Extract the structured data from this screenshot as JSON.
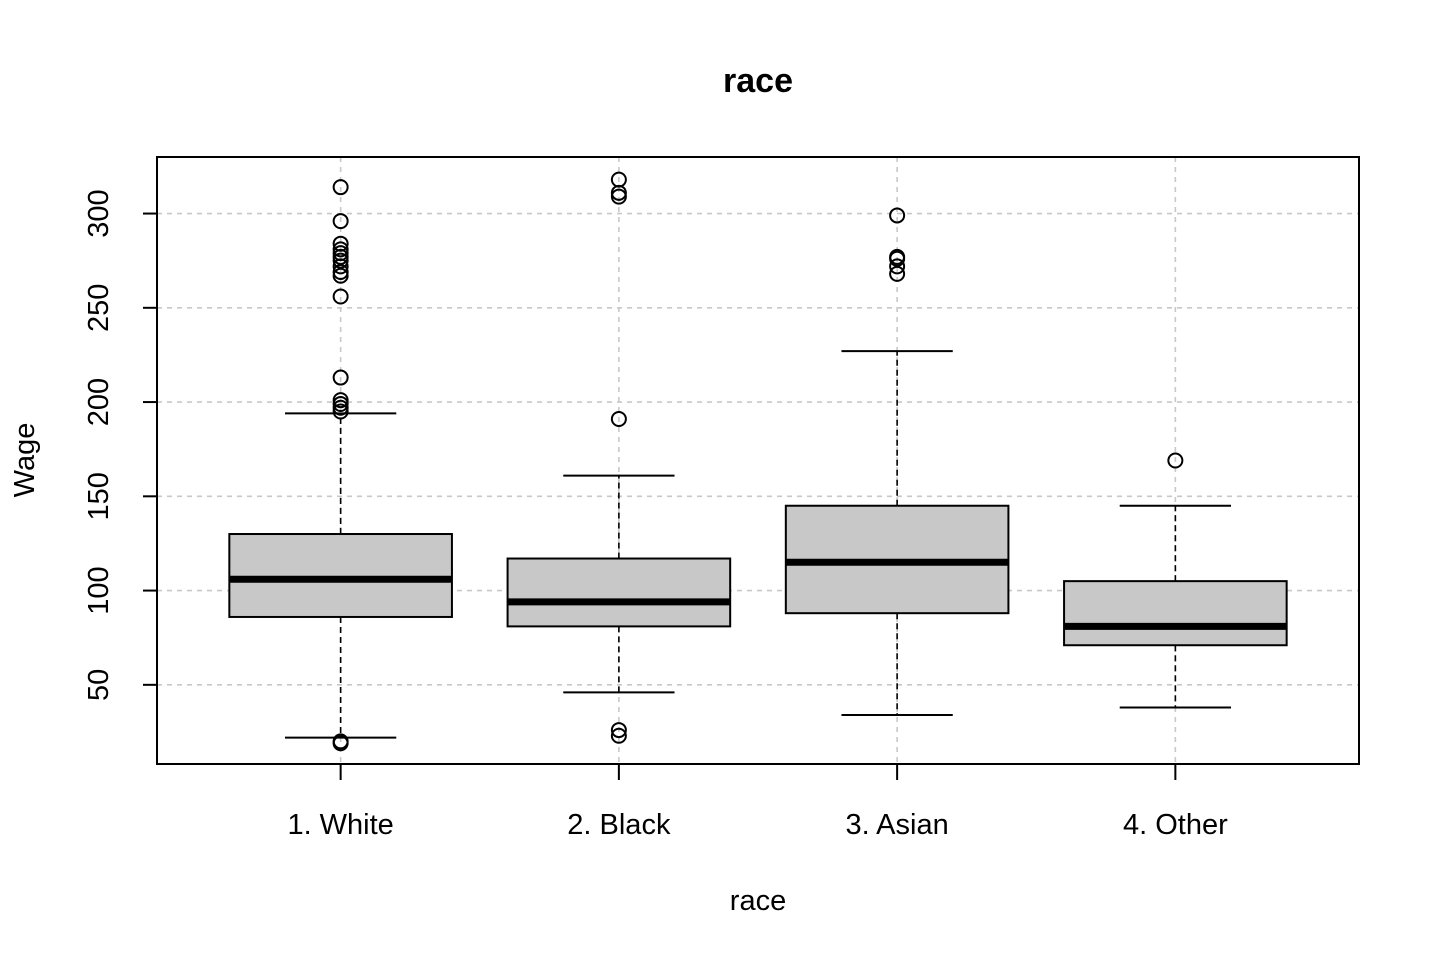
{
  "chart_data": {
    "type": "boxplot",
    "title": "race",
    "xlabel": "race",
    "ylabel": "Wage",
    "categories": [
      "1. White",
      "2. Black",
      "3. Asian",
      "4. Other"
    ],
    "ylim": [
      8,
      330
    ],
    "yticks": [
      50,
      100,
      150,
      200,
      250,
      300
    ],
    "grid": true,
    "box_fill": "#c8c8c8",
    "grid_color": "#c8c8c8",
    "boxes": [
      {
        "category": "1. White",
        "whisker_low": 22,
        "q1": 86,
        "median": 106,
        "q3": 130,
        "whisker_high": 194,
        "outliers": [
          314,
          296,
          284,
          281,
          279,
          277,
          275,
          272,
          269,
          267,
          256,
          213,
          201,
          199,
          197,
          195,
          20,
          19
        ]
      },
      {
        "category": "2. Black",
        "whisker_low": 46,
        "q1": 81,
        "median": 94,
        "q3": 117,
        "whisker_high": 161,
        "outliers": [
          318,
          311,
          309,
          191,
          26,
          23
        ]
      },
      {
        "category": "3. Asian",
        "whisker_low": 34,
        "q1": 88,
        "median": 115,
        "q3": 145,
        "whisker_high": 227,
        "outliers": [
          299,
          277,
          276,
          272,
          268
        ]
      },
      {
        "category": "4. Other",
        "whisker_low": 38,
        "q1": 71,
        "median": 81,
        "q3": 105,
        "whisker_high": 145,
        "outliers": [
          169
        ]
      }
    ]
  }
}
